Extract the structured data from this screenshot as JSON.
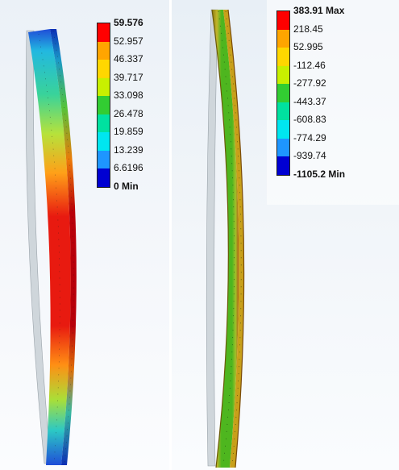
{
  "left_plot": {
    "legend": {
      "colors": [
        "#ff0000",
        "#ffa500",
        "#ffd700",
        "#c8f000",
        "#32cd32",
        "#00e1a0",
        "#00e6f0",
        "#1e96ff",
        "#0000d2"
      ],
      "labels": [
        "59.576",
        "52.957",
        "46.337",
        "39.717",
        "33.098",
        "26.478",
        "19.859",
        "13.239",
        "6.6196",
        "0 Min"
      ],
      "bold_labels": [
        "59.576",
        "0 Min"
      ]
    }
  },
  "right_plot": {
    "legend": {
      "colors": [
        "#ff0000",
        "#ffa500",
        "#ffd700",
        "#c8f000",
        "#32cd32",
        "#00e1a0",
        "#00e6f0",
        "#1e96ff",
        "#0000d2"
      ],
      "labels": [
        "383.91 Max",
        "218.45",
        "52.995",
        "-112.46",
        "-277.92",
        "-443.37",
        "-608.83",
        "-774.29",
        "-939.74",
        "-1105.2 Min"
      ],
      "bold_labels": [
        "383.91 Max",
        "-1105.2 Min"
      ]
    }
  }
}
